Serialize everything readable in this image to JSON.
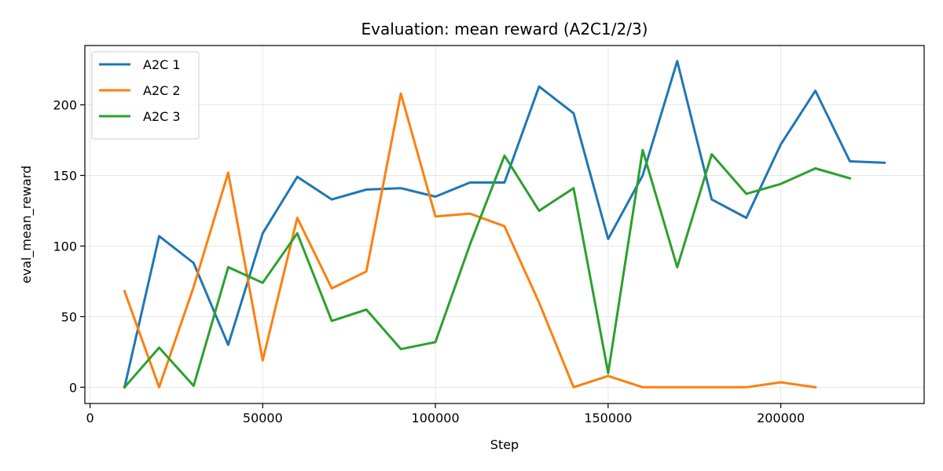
{
  "chart_data": {
    "type": "line",
    "title": "Evaluation: mean reward (A2C1/2/3)",
    "xlabel": "Step",
    "ylabel": "eval_mean_reward",
    "xlim": [
      -1500,
      241500
    ],
    "ylim": [
      -11.5,
      242
    ],
    "x_ticks": [
      0,
      50000,
      100000,
      150000,
      200000
    ],
    "y_ticks": [
      0,
      50,
      100,
      150,
      200
    ],
    "grid": true,
    "legend_position": "top-left",
    "series": [
      {
        "name": "A2C 1",
        "color": "#1f77b4",
        "x": [
          10000,
          20000,
          30000,
          40000,
          50000,
          60000,
          70000,
          80000,
          90000,
          100000,
          110000,
          120000,
          130000,
          140000,
          150000,
          160000,
          170000,
          180000,
          190000,
          200000,
          210000,
          220000,
          230000
        ],
        "values": [
          0,
          107,
          88,
          30,
          109,
          149,
          133,
          140,
          141,
          135,
          145,
          145,
          213,
          194,
          105,
          150,
          231,
          133,
          120,
          172,
          210,
          160,
          159
        ]
      },
      {
        "name": "A2C 2",
        "color": "#ff7f0e",
        "x": [
          10000,
          20000,
          30000,
          40000,
          50000,
          60000,
          70000,
          80000,
          90000,
          100000,
          110000,
          120000,
          130000,
          140000,
          150000,
          160000,
          170000,
          180000,
          190000,
          200000,
          210000
        ],
        "values": [
          68,
          0,
          71,
          152,
          19,
          120,
          70,
          82,
          208,
          121,
          123,
          114,
          60,
          0,
          8,
          0,
          0,
          0,
          0,
          3.5,
          0
        ]
      },
      {
        "name": "A2C 3",
        "color": "#2ca02c",
        "x": [
          10000,
          20000,
          30000,
          40000,
          50000,
          60000,
          70000,
          80000,
          90000,
          100000,
          110000,
          120000,
          130000,
          140000,
          150000,
          160000,
          170000,
          180000,
          190000,
          200000,
          210000,
          220000
        ],
        "values": [
          0,
          28,
          1,
          85,
          74,
          109,
          47,
          55,
          27,
          32,
          101,
          164,
          125,
          141,
          10,
          168,
          85,
          165,
          137,
          144,
          155,
          148
        ]
      }
    ]
  }
}
